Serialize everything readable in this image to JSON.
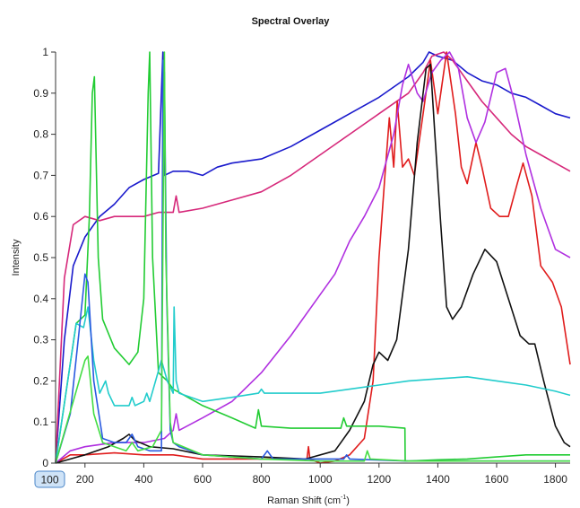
{
  "chart_data": {
    "type": "line",
    "title": "Spectral Overlay",
    "xlabel": "Raman Shift (cm",
    "xlabel_sup": "-1",
    "xlabel_close": ")",
    "ylabel": "Intensity",
    "xlim": [
      100,
      1850
    ],
    "ylim": [
      0,
      1
    ],
    "x_ticks": [
      "200",
      "400",
      "600",
      "800",
      "1000",
      "1200",
      "1400",
      "1600",
      "1800"
    ],
    "x_min_label": "100",
    "y_ticks": [
      "0",
      "0.1",
      "0.2",
      "0.3",
      "0.4",
      "0.5",
      "0.6",
      "0.7",
      "0.8",
      "0.9",
      "1"
    ],
    "grid": false,
    "legend": "none",
    "series": [
      {
        "color": "#1a1acc",
        "points": [
          [
            100,
            0.0
          ],
          [
            130,
            0.3
          ],
          [
            160,
            0.48
          ],
          [
            200,
            0.55
          ],
          [
            250,
            0.6
          ],
          [
            300,
            0.63
          ],
          [
            350,
            0.67
          ],
          [
            400,
            0.69
          ],
          [
            450,
            0.705
          ],
          [
            465,
            1.0
          ],
          [
            470,
            0.7
          ],
          [
            500,
            0.71
          ],
          [
            550,
            0.71
          ],
          [
            600,
            0.7
          ],
          [
            650,
            0.72
          ],
          [
            700,
            0.73
          ],
          [
            800,
            0.74
          ],
          [
            900,
            0.77
          ],
          [
            1000,
            0.81
          ],
          [
            1100,
            0.85
          ],
          [
            1200,
            0.89
          ],
          [
            1300,
            0.94
          ],
          [
            1350,
            0.975
          ],
          [
            1370,
            1.0
          ],
          [
            1400,
            0.99
          ],
          [
            1450,
            0.98
          ],
          [
            1500,
            0.95
          ],
          [
            1550,
            0.93
          ],
          [
            1600,
            0.92
          ],
          [
            1650,
            0.9
          ],
          [
            1700,
            0.89
          ],
          [
            1750,
            0.87
          ],
          [
            1800,
            0.85
          ],
          [
            1850,
            0.84
          ]
        ]
      },
      {
        "color": "#d6287a",
        "points": [
          [
            100,
            0.0
          ],
          [
            130,
            0.45
          ],
          [
            160,
            0.58
          ],
          [
            200,
            0.6
          ],
          [
            250,
            0.59
          ],
          [
            300,
            0.6
          ],
          [
            400,
            0.6
          ],
          [
            450,
            0.61
          ],
          [
            500,
            0.61
          ],
          [
            510,
            0.65
          ],
          [
            520,
            0.61
          ],
          [
            600,
            0.62
          ],
          [
            700,
            0.64
          ],
          [
            800,
            0.66
          ],
          [
            900,
            0.7
          ],
          [
            1000,
            0.75
          ],
          [
            1100,
            0.8
          ],
          [
            1200,
            0.85
          ],
          [
            1300,
            0.9
          ],
          [
            1350,
            0.95
          ],
          [
            1380,
            0.99
          ],
          [
            1420,
            1.0
          ],
          [
            1450,
            0.98
          ],
          [
            1500,
            0.93
          ],
          [
            1550,
            0.88
          ],
          [
            1600,
            0.84
          ],
          [
            1650,
            0.8
          ],
          [
            1700,
            0.77
          ],
          [
            1750,
            0.75
          ],
          [
            1800,
            0.73
          ],
          [
            1850,
            0.71
          ]
        ]
      },
      {
        "color": "#e01c1c",
        "points": [
          [
            100,
            0.0
          ],
          [
            150,
            0.02
          ],
          [
            200,
            0.02
          ],
          [
            300,
            0.025
          ],
          [
            400,
            0.02
          ],
          [
            500,
            0.02
          ],
          [
            600,
            0.01
          ],
          [
            700,
            0.01
          ],
          [
            800,
            0.01
          ],
          [
            900,
            0.01
          ],
          [
            955,
            0.01
          ],
          [
            960,
            0.04
          ],
          [
            965,
            0.01
          ],
          [
            1000,
            0.0
          ],
          [
            1050,
            0.005
          ],
          [
            1100,
            0.02
          ],
          [
            1150,
            0.06
          ],
          [
            1180,
            0.2
          ],
          [
            1200,
            0.5
          ],
          [
            1220,
            0.7
          ],
          [
            1235,
            0.84
          ],
          [
            1250,
            0.72
          ],
          [
            1262,
            0.88
          ],
          [
            1280,
            0.72
          ],
          [
            1300,
            0.74
          ],
          [
            1320,
            0.7
          ],
          [
            1350,
            0.85
          ],
          [
            1375,
            0.98
          ],
          [
            1400,
            0.85
          ],
          [
            1430,
            1.0
          ],
          [
            1460,
            0.85
          ],
          [
            1480,
            0.72
          ],
          [
            1500,
            0.68
          ],
          [
            1530,
            0.78
          ],
          [
            1550,
            0.72
          ],
          [
            1580,
            0.62
          ],
          [
            1610,
            0.6
          ],
          [
            1640,
            0.6
          ],
          [
            1670,
            0.68
          ],
          [
            1690,
            0.73
          ],
          [
            1720,
            0.65
          ],
          [
            1750,
            0.48
          ],
          [
            1790,
            0.44
          ],
          [
            1820,
            0.38
          ],
          [
            1850,
            0.24
          ]
        ]
      },
      {
        "color": "#b030e0",
        "points": [
          [
            100,
            0.0
          ],
          [
            150,
            0.03
          ],
          [
            200,
            0.04
          ],
          [
            300,
            0.05
          ],
          [
            400,
            0.05
          ],
          [
            470,
            0.06
          ],
          [
            500,
            0.08
          ],
          [
            510,
            0.12
          ],
          [
            520,
            0.08
          ],
          [
            600,
            0.11
          ],
          [
            700,
            0.15
          ],
          [
            800,
            0.22
          ],
          [
            900,
            0.31
          ],
          [
            1000,
            0.41
          ],
          [
            1050,
            0.46
          ],
          [
            1100,
            0.54
          ],
          [
            1150,
            0.6
          ],
          [
            1200,
            0.67
          ],
          [
            1250,
            0.8
          ],
          [
            1280,
            0.92
          ],
          [
            1300,
            0.97
          ],
          [
            1330,
            0.9
          ],
          [
            1350,
            0.88
          ],
          [
            1380,
            0.95
          ],
          [
            1410,
            0.98
          ],
          [
            1440,
            1.0
          ],
          [
            1470,
            0.96
          ],
          [
            1500,
            0.84
          ],
          [
            1530,
            0.78
          ],
          [
            1560,
            0.83
          ],
          [
            1600,
            0.95
          ],
          [
            1630,
            0.96
          ],
          [
            1660,
            0.88
          ],
          [
            1700,
            0.75
          ],
          [
            1750,
            0.62
          ],
          [
            1800,
            0.52
          ],
          [
            1850,
            0.5
          ]
        ]
      },
      {
        "color": "#111111",
        "points": [
          [
            100,
            0.0
          ],
          [
            200,
            0.02
          ],
          [
            280,
            0.04
          ],
          [
            330,
            0.06
          ],
          [
            350,
            0.07
          ],
          [
            370,
            0.055
          ],
          [
            420,
            0.04
          ],
          [
            500,
            0.035
          ],
          [
            600,
            0.02
          ],
          [
            800,
            0.015
          ],
          [
            950,
            0.01
          ],
          [
            1050,
            0.03
          ],
          [
            1100,
            0.08
          ],
          [
            1150,
            0.15
          ],
          [
            1180,
            0.24
          ],
          [
            1200,
            0.27
          ],
          [
            1230,
            0.25
          ],
          [
            1260,
            0.3
          ],
          [
            1300,
            0.52
          ],
          [
            1330,
            0.78
          ],
          [
            1360,
            0.96
          ],
          [
            1375,
            0.97
          ],
          [
            1390,
            0.8
          ],
          [
            1410,
            0.58
          ],
          [
            1430,
            0.38
          ],
          [
            1450,
            0.35
          ],
          [
            1480,
            0.38
          ],
          [
            1520,
            0.46
          ],
          [
            1560,
            0.52
          ],
          [
            1600,
            0.49
          ],
          [
            1640,
            0.4
          ],
          [
            1680,
            0.31
          ],
          [
            1710,
            0.29
          ],
          [
            1730,
            0.29
          ],
          [
            1760,
            0.2
          ],
          [
            1800,
            0.09
          ],
          [
            1830,
            0.05
          ],
          [
            1850,
            0.04
          ]
        ]
      },
      {
        "color": "#22cc33",
        "points": [
          [
            100,
            0.0
          ],
          [
            170,
            0.34
          ],
          [
            200,
            0.36
          ],
          [
            215,
            0.6
          ],
          [
            225,
            0.9
          ],
          [
            232,
            0.94
          ],
          [
            245,
            0.5
          ],
          [
            260,
            0.35
          ],
          [
            300,
            0.28
          ],
          [
            350,
            0.24
          ],
          [
            380,
            0.27
          ],
          [
            400,
            0.4
          ],
          [
            415,
            0.9
          ],
          [
            420,
            1.0
          ],
          [
            430,
            0.5
          ],
          [
            450,
            0.22
          ],
          [
            480,
            0.2
          ],
          [
            500,
            0.18
          ],
          [
            550,
            0.16
          ],
          [
            600,
            0.14
          ],
          [
            700,
            0.11
          ],
          [
            780,
            0.085
          ],
          [
            790,
            0.13
          ],
          [
            800,
            0.09
          ],
          [
            900,
            0.085
          ],
          [
            1000,
            0.085
          ],
          [
            1070,
            0.085
          ],
          [
            1080,
            0.11
          ],
          [
            1090,
            0.09
          ],
          [
            1200,
            0.09
          ],
          [
            1288,
            0.085
          ],
          [
            1289,
            0.005
          ],
          [
            1300,
            0.005
          ],
          [
            1400,
            0.008
          ],
          [
            1500,
            0.01
          ],
          [
            1600,
            0.015
          ],
          [
            1700,
            0.02
          ],
          [
            1850,
            0.02
          ]
        ]
      },
      {
        "color": "#22cccc",
        "points": [
          [
            100,
            0.0
          ],
          [
            170,
            0.34
          ],
          [
            195,
            0.33
          ],
          [
            210,
            0.38
          ],
          [
            230,
            0.25
          ],
          [
            250,
            0.17
          ],
          [
            270,
            0.2
          ],
          [
            280,
            0.17
          ],
          [
            300,
            0.14
          ],
          [
            350,
            0.14
          ],
          [
            360,
            0.16
          ],
          [
            370,
            0.14
          ],
          [
            400,
            0.15
          ],
          [
            410,
            0.17
          ],
          [
            420,
            0.15
          ],
          [
            460,
            0.25
          ],
          [
            480,
            0.2
          ],
          [
            500,
            0.17
          ],
          [
            503,
            0.38
          ],
          [
            510,
            0.2
          ],
          [
            520,
            0.17
          ],
          [
            600,
            0.15
          ],
          [
            700,
            0.16
          ],
          [
            790,
            0.17
          ],
          [
            800,
            0.18
          ],
          [
            810,
            0.17
          ],
          [
            900,
            0.17
          ],
          [
            1000,
            0.17
          ],
          [
            1100,
            0.18
          ],
          [
            1200,
            0.19
          ],
          [
            1300,
            0.2
          ],
          [
            1400,
            0.205
          ],
          [
            1500,
            0.21
          ],
          [
            1600,
            0.2
          ],
          [
            1700,
            0.19
          ],
          [
            1800,
            0.175
          ],
          [
            1850,
            0.165
          ]
        ]
      },
      {
        "color": "#2a5ae0",
        "points": [
          [
            100,
            0.0
          ],
          [
            150,
            0.12
          ],
          [
            180,
            0.32
          ],
          [
            200,
            0.46
          ],
          [
            210,
            0.44
          ],
          [
            230,
            0.2
          ],
          [
            260,
            0.06
          ],
          [
            300,
            0.05
          ],
          [
            340,
            0.05
          ],
          [
            360,
            0.07
          ],
          [
            380,
            0.04
          ],
          [
            420,
            0.03
          ],
          [
            460,
            0.03
          ],
          [
            465,
            0.98
          ],
          [
            470,
            0.95
          ],
          [
            478,
            0.4
          ],
          [
            490,
            0.08
          ],
          [
            500,
            0.05
          ],
          [
            520,
            0.04
          ],
          [
            600,
            0.02
          ],
          [
            800,
            0.01
          ],
          [
            820,
            0.03
          ],
          [
            840,
            0.01
          ],
          [
            1000,
            0.01
          ],
          [
            1080,
            0.01
          ],
          [
            1090,
            0.02
          ],
          [
            1100,
            0.01
          ],
          [
            1300,
            0.005
          ],
          [
            1850,
            0.005
          ]
        ]
      },
      {
        "color": "#44dd44",
        "points": [
          [
            100,
            0.0
          ],
          [
            200,
            0.25
          ],
          [
            210,
            0.26
          ],
          [
            230,
            0.12
          ],
          [
            260,
            0.05
          ],
          [
            300,
            0.04
          ],
          [
            340,
            0.03
          ],
          [
            360,
            0.05
          ],
          [
            380,
            0.03
          ],
          [
            430,
            0.04
          ],
          [
            460,
            0.08
          ],
          [
            470,
            1.0
          ],
          [
            475,
            0.5
          ],
          [
            490,
            0.1
          ],
          [
            500,
            0.05
          ],
          [
            600,
            0.02
          ],
          [
            800,
            0.01
          ],
          [
            1000,
            0.005
          ],
          [
            1150,
            0.005
          ],
          [
            1160,
            0.03
          ],
          [
            1170,
            0.01
          ],
          [
            1300,
            0.005
          ],
          [
            1850,
            0.005
          ]
        ]
      }
    ]
  }
}
